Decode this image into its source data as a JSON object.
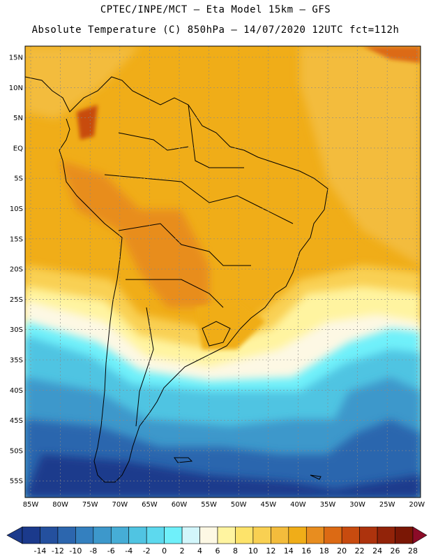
{
  "header": {
    "line1": "CPTEC/INPE/MCT –  Eta Model 15km – GFS",
    "line2": "Absolute Temperature (C) 850hPa – 14/07/2020 12UTC fct=112h"
  },
  "map": {
    "lat_labels": [
      "15N",
      "10N",
      "5N",
      "EQ",
      "5S",
      "10S",
      "15S",
      "20S",
      "25S",
      "30S",
      "35S",
      "40S",
      "45S",
      "50S",
      "55S"
    ],
    "lon_labels": [
      "85W",
      "80W",
      "75W",
      "70W",
      "65W",
      "60W",
      "55W",
      "50W",
      "45W",
      "40W",
      "35W",
      "30W",
      "25W",
      "20W"
    ]
  },
  "colorbar": {
    "labels": [
      "-14",
      "-12",
      "-10",
      "-8",
      "-6",
      "-4",
      "-2",
      "0",
      "2",
      "4",
      "6",
      "8",
      "10",
      "12",
      "14",
      "16",
      "18",
      "20",
      "22",
      "24",
      "26",
      "28"
    ],
    "colors": [
      "#1b3a8c",
      "#24509e",
      "#2c66ae",
      "#3480bf",
      "#3d98cb",
      "#46add6",
      "#50c4e2",
      "#5dd9ee",
      "#6ff0fa",
      "#d2f6fb",
      "#fdf8e4",
      "#fff4a0",
      "#fde36a",
      "#f9d052",
      "#f3bc3c",
      "#f0ad18",
      "#e88d1f",
      "#dc6a14",
      "#c84b0f",
      "#ad330d",
      "#922309",
      "#7a1705",
      "#8c0b28"
    ]
  },
  "colors": {
    "ocean_warm": "#f0ad18",
    "ocean_hot": "#e88d1f",
    "land_line": "#000000"
  }
}
